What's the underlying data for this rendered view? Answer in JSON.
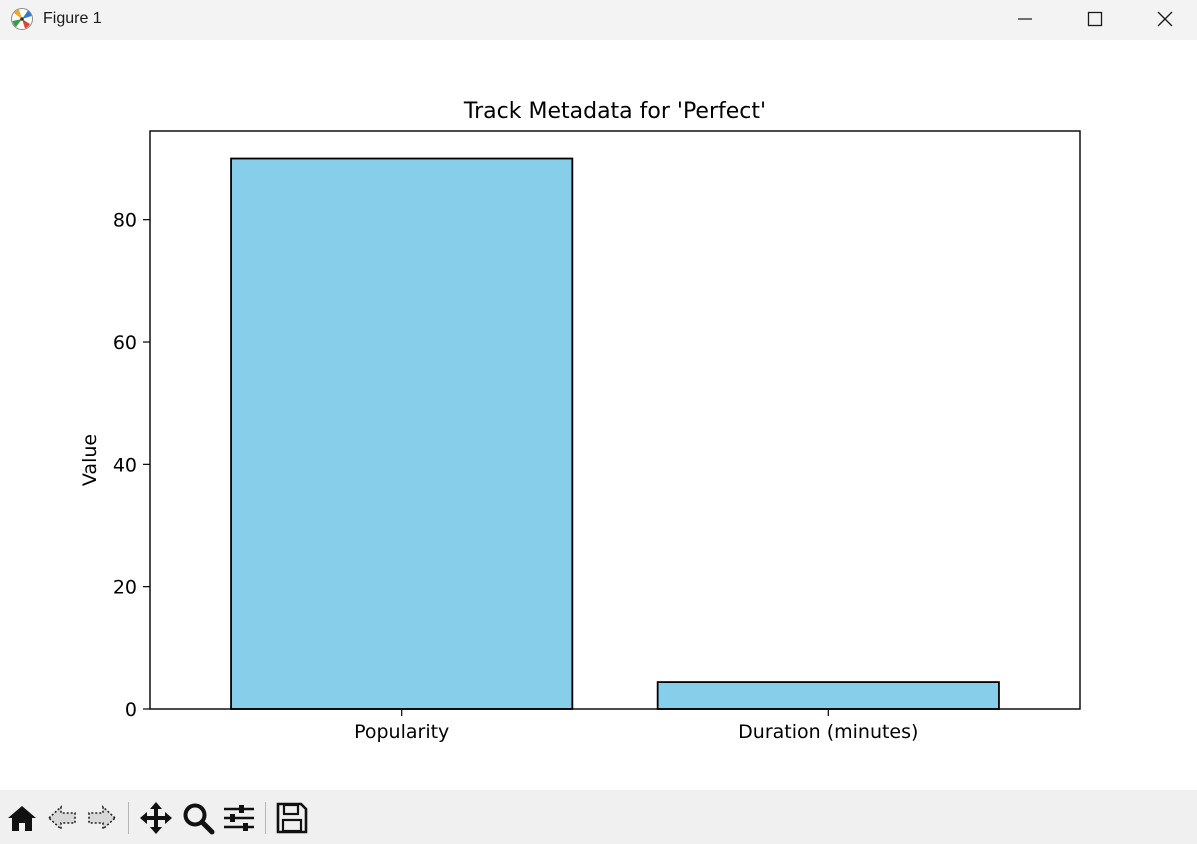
{
  "window": {
    "title": "Figure 1",
    "controls": [
      "minimize-icon",
      "maximize-icon",
      "close-icon"
    ]
  },
  "toolbar": {
    "tools": [
      "home-icon",
      "back-arrow-icon",
      "forward-arrow-icon",
      "pan-icon",
      "zoom-icon",
      "configure-subplots-icon",
      "save-icon"
    ]
  },
  "chart_data": {
    "type": "bar",
    "title": "Track Metadata for 'Perfect'",
    "xlabel": "",
    "ylabel": "Value",
    "categories": [
      "Popularity",
      "Duration (minutes)"
    ],
    "values": [
      90,
      4.4
    ],
    "ylim": [
      0,
      94.5
    ],
    "yticks": [
      0,
      20,
      40,
      60,
      80
    ],
    "bar_color": "#87ceeb",
    "edge_color": "#000000",
    "grid": false,
    "legend": "none"
  }
}
